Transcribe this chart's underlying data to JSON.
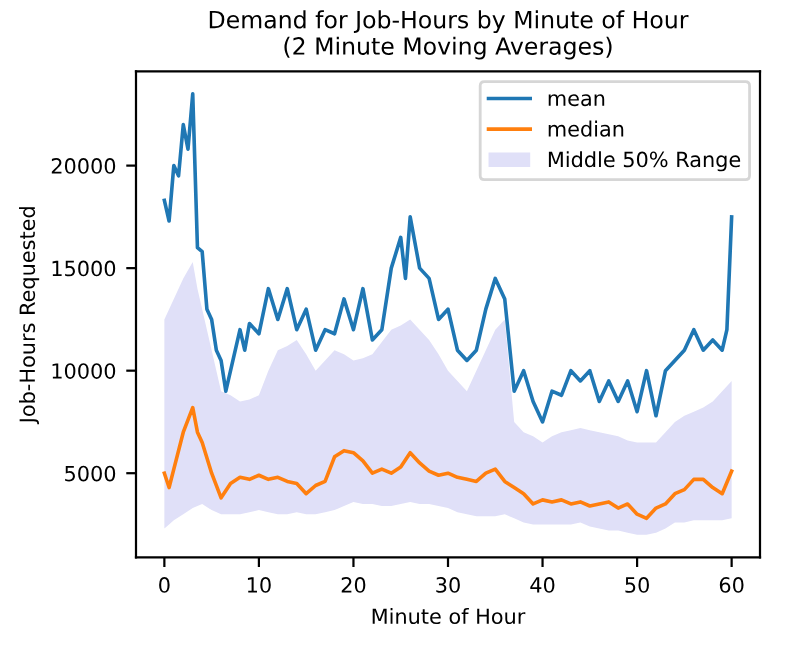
{
  "chart_data": {
    "type": "line",
    "title": "Demand for Job-Hours by Minute of Hour\n(2 Minute Moving Averages)",
    "xlabel": "Minute of Hour",
    "ylabel": "Job-Hours Requested",
    "xlim": [
      -3,
      63
    ],
    "xticks": [
      0,
      10,
      20,
      30,
      40,
      50,
      60
    ],
    "ylim": [
      900,
      24600
    ],
    "yticks": [
      5000,
      10000,
      15000,
      20000
    ],
    "grid": false,
    "legend": "top right",
    "annotations": [
      "Middle 50% Range"
    ],
    "series": [
      {
        "name": "mean",
        "color": "#1f77b4",
        "x": [
          0,
          0.5,
          1,
          1.5,
          2,
          2.5,
          3,
          3.5,
          4,
          4.5,
          5,
          5.5,
          6,
          6.5,
          7,
          8,
          8.5,
          9,
          10,
          11,
          12,
          13,
          14,
          15,
          16,
          17,
          18,
          19,
          20,
          21,
          22,
          23,
          24,
          25,
          25.5,
          26,
          27,
          28,
          29,
          30,
          31,
          32,
          33,
          34,
          35,
          36,
          37,
          38,
          39,
          40,
          41,
          42,
          43,
          44,
          45,
          46,
          47,
          48,
          49,
          50,
          51,
          52,
          53,
          54,
          55,
          56,
          57,
          58,
          59,
          59.5,
          60
        ],
        "values": [
          18300,
          17300,
          20000,
          19500,
          22000,
          20800,
          23500,
          16000,
          15800,
          13000,
          12500,
          11000,
          10500,
          9000,
          10000,
          12000,
          11000,
          12300,
          11800,
          14000,
          12500,
          14000,
          12000,
          13000,
          11000,
          12000,
          11800,
          13500,
          12000,
          14000,
          11500,
          12000,
          15000,
          16500,
          14500,
          17500,
          15000,
          14500,
          12500,
          13000,
          11000,
          10500,
          11000,
          13000,
          14500,
          13500,
          9000,
          10000,
          8500,
          7500,
          9000,
          8800,
          10000,
          9500,
          10000,
          8500,
          9500,
          8500,
          9500,
          8000,
          10000,
          7800,
          10000,
          10500,
          11000,
          12000,
          11000,
          11500,
          11000,
          12000,
          17500
        ]
      },
      {
        "name": "median",
        "color": "#ff7f0e",
        "x": [
          0,
          0.5,
          1,
          2,
          3,
          3.5,
          4,
          5,
          6,
          7,
          8,
          9,
          10,
          11,
          12,
          13,
          14,
          15,
          16,
          17,
          18,
          19,
          20,
          21,
          22,
          23,
          24,
          25,
          26,
          27,
          28,
          29,
          30,
          31,
          32,
          33,
          34,
          35,
          36,
          37,
          38,
          39,
          40,
          41,
          42,
          43,
          44,
          45,
          46,
          47,
          48,
          49,
          50,
          51,
          52,
          53,
          54,
          55,
          56,
          57,
          58,
          59,
          60
        ],
        "values": [
          5000,
          4300,
          5200,
          7000,
          8200,
          7000,
          6500,
          5000,
          3800,
          4500,
          4800,
          4700,
          4900,
          4700,
          4800,
          4600,
          4500,
          4000,
          4400,
          4600,
          5800,
          6100,
          6000,
          5600,
          5000,
          5200,
          5000,
          5300,
          6000,
          5500,
          5100,
          4900,
          5000,
          4800,
          4700,
          4600,
          5000,
          5200,
          4600,
          4300,
          4000,
          3500,
          3700,
          3600,
          3700,
          3500,
          3600,
          3400,
          3500,
          3600,
          3300,
          3500,
          3000,
          2800,
          3300,
          3500,
          4000,
          4200,
          4700,
          4700,
          4300,
          4000,
          5100
        ],
        "lower": [
          2300,
          2500,
          2700,
          3000,
          3300,
          3400,
          3500,
          3200,
          3000,
          3000,
          3000,
          3100,
          3200,
          3100,
          3000,
          3000,
          3100,
          3000,
          3000,
          3100,
          3200,
          3400,
          3600,
          3500,
          3500,
          3400,
          3400,
          3500,
          3600,
          3500,
          3500,
          3400,
          3300,
          3100,
          3000,
          2900,
          2900,
          2900,
          3000,
          2800,
          2600,
          2500,
          2500,
          2500,
          2500,
          2500,
          2600,
          2400,
          2300,
          2200,
          2200,
          2100,
          2000,
          2000,
          2100,
          2300,
          2600,
          2600,
          2700,
          2700,
          2700,
          2700,
          2800
        ],
        "upper": [
          12500,
          13000,
          13500,
          14500,
          15300,
          14000,
          13000,
          11000,
          9000,
          8800,
          8500,
          8600,
          8800,
          10000,
          11000,
          11200,
          11500,
          10800,
          10000,
          10500,
          11000,
          10800,
          10500,
          10600,
          10800,
          11400,
          12000,
          12200,
          12500,
          12000,
          11500,
          10800,
          10000,
          9500,
          9000,
          10000,
          11000,
          12000,
          12500,
          7500,
          7000,
          6800,
          6500,
          6800,
          7000,
          7100,
          7200,
          7100,
          7000,
          6900,
          6800,
          6600,
          6500,
          6500,
          6500,
          7000,
          7500,
          7800,
          8000,
          8200,
          8500,
          9000,
          9500
        ]
      }
    ]
  }
}
